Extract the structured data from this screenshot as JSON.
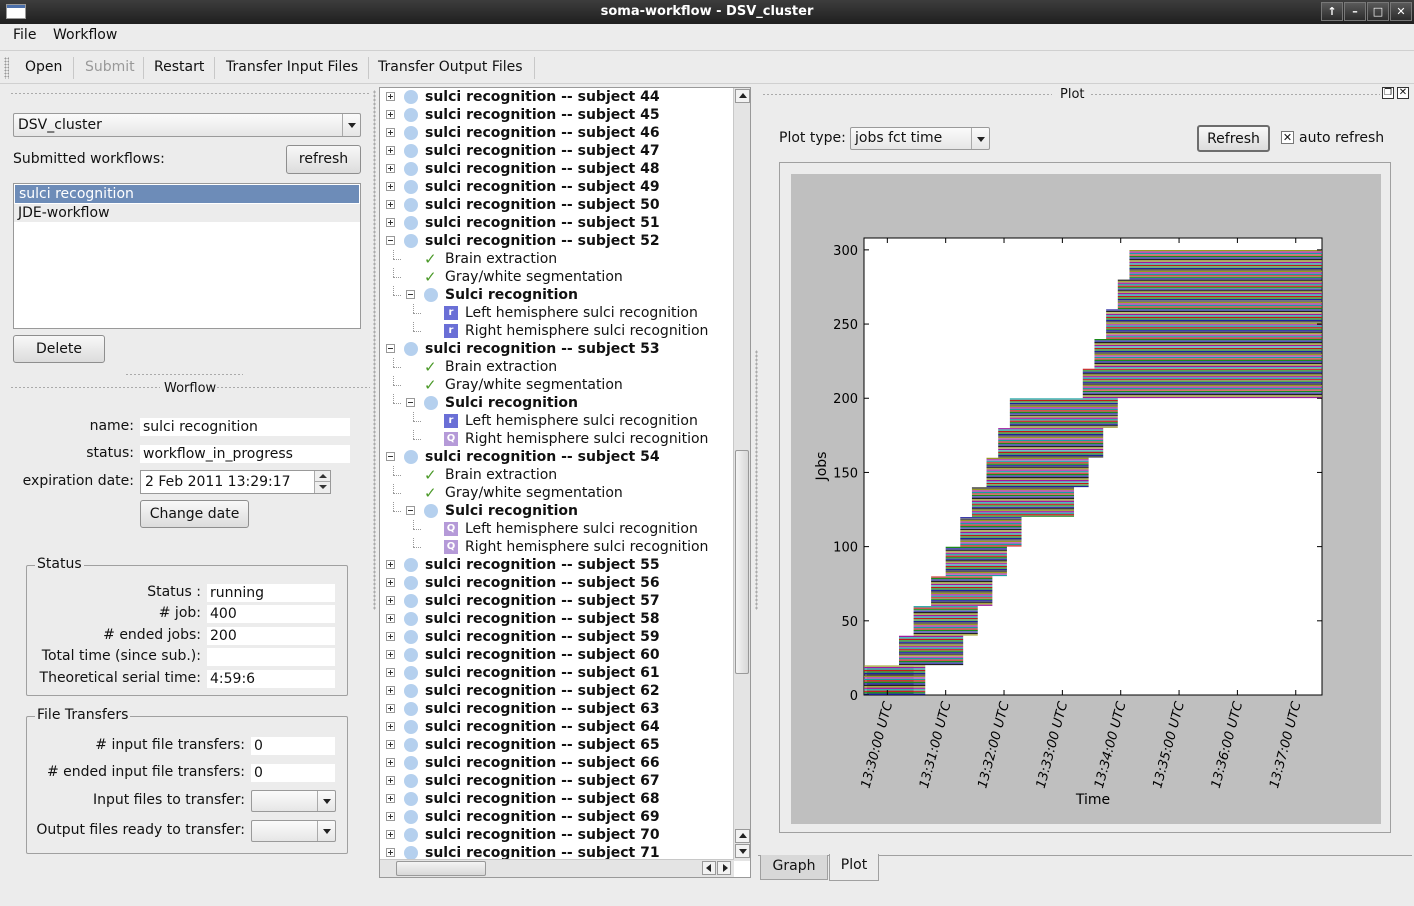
{
  "window": {
    "title": "soma-workflow - DSV_cluster"
  },
  "menu": {
    "file": "File",
    "workflow": "Workflow"
  },
  "toolbar": {
    "open": "Open",
    "submit": "Submit",
    "restart": "Restart",
    "transfer_input": "Transfer Input Files",
    "transfer_output": "Transfer Output Files"
  },
  "left": {
    "resource": "DSV_cluster",
    "submitted_label": "Submitted workflows:",
    "refresh": "refresh",
    "workflows": [
      "sulci recognition",
      "JDE-workflow"
    ],
    "delete": "Delete",
    "section_title": "Worflow",
    "name_label": "name:",
    "name_value": "sulci recognition",
    "status_label": "status:",
    "status_value": "workflow_in_progress",
    "expiration_label": "expiration date:",
    "expiration_value": "2 Feb 2011 13:29:17",
    "change_date": "Change date"
  },
  "status_box": {
    "title": "Status",
    "status_label": "Status :",
    "status_value": "running",
    "job_label": "# job:",
    "job_value": "400",
    "ended_label": "# ended jobs:",
    "ended_value": "200",
    "total_label": "Total time (since sub.):",
    "total_value": "",
    "serial_label": "Theoretical serial time:",
    "serial_value": "4:59:6"
  },
  "transfer_box": {
    "title": "File Transfers",
    "input_label": "# input file transfers:",
    "input_value": "0",
    "ended_input_label": "# ended input file transfers:",
    "ended_input_value": "0",
    "input_files_label": "Input files to transfer:",
    "output_files_label": "Output files ready to transfer:"
  },
  "tree": [
    {
      "level": 0,
      "exp": "plus",
      "icon": "dot",
      "text": "sulci recognition -- subject 44",
      "bold": true
    },
    {
      "level": 0,
      "exp": "plus",
      "icon": "dot",
      "text": "sulci recognition -- subject 45",
      "bold": true
    },
    {
      "level": 0,
      "exp": "plus",
      "icon": "dot",
      "text": "sulci recognition -- subject 46",
      "bold": true
    },
    {
      "level": 0,
      "exp": "plus",
      "icon": "dot",
      "text": "sulci recognition -- subject 47",
      "bold": true
    },
    {
      "level": 0,
      "exp": "plus",
      "icon": "dot",
      "text": "sulci recognition -- subject 48",
      "bold": true
    },
    {
      "level": 0,
      "exp": "plus",
      "icon": "dot",
      "text": "sulci recognition -- subject 49",
      "bold": true
    },
    {
      "level": 0,
      "exp": "plus",
      "icon": "dot",
      "text": "sulci recognition -- subject 50",
      "bold": true
    },
    {
      "level": 0,
      "exp": "plus",
      "icon": "dot",
      "text": "sulci recognition -- subject 51",
      "bold": true
    },
    {
      "level": 0,
      "exp": "minus",
      "icon": "dot",
      "text": "sulci recognition -- subject 52",
      "bold": true
    },
    {
      "level": 1,
      "exp": "",
      "icon": "check",
      "text": "Brain extraction",
      "bold": false
    },
    {
      "level": 1,
      "exp": "",
      "icon": "check",
      "text": "Gray/white segmentation",
      "bold": false
    },
    {
      "level": 1,
      "exp": "minus",
      "icon": "dot",
      "text": "Sulci recognition",
      "bold": true
    },
    {
      "level": 2,
      "exp": "",
      "icon": "r",
      "text": "Left hemisphere sulci recognition",
      "bold": false
    },
    {
      "level": 2,
      "exp": "",
      "icon": "r",
      "text": "Right hemisphere sulci recognition",
      "bold": false
    },
    {
      "level": 0,
      "exp": "minus",
      "icon": "dot",
      "text": "sulci recognition -- subject 53",
      "bold": true
    },
    {
      "level": 1,
      "exp": "",
      "icon": "check",
      "text": "Brain extraction",
      "bold": false
    },
    {
      "level": 1,
      "exp": "",
      "icon": "check",
      "text": "Gray/white segmentation",
      "bold": false
    },
    {
      "level": 1,
      "exp": "minus",
      "icon": "dot",
      "text": "Sulci recognition",
      "bold": true
    },
    {
      "level": 2,
      "exp": "",
      "icon": "r",
      "text": "Left hemisphere sulci recognition",
      "bold": false
    },
    {
      "level": 2,
      "exp": "",
      "icon": "q",
      "text": "Right hemisphere sulci recognition",
      "bold": false
    },
    {
      "level": 0,
      "exp": "minus",
      "icon": "dot",
      "text": "sulci recognition -- subject 54",
      "bold": true
    },
    {
      "level": 1,
      "exp": "",
      "icon": "check",
      "text": "Brain extraction",
      "bold": false
    },
    {
      "level": 1,
      "exp": "",
      "icon": "check",
      "text": "Gray/white segmentation",
      "bold": false
    },
    {
      "level": 1,
      "exp": "minus",
      "icon": "dot",
      "text": "Sulci recognition",
      "bold": true
    },
    {
      "level": 2,
      "exp": "",
      "icon": "q",
      "text": "Left hemisphere sulci recognition",
      "bold": false
    },
    {
      "level": 2,
      "exp": "",
      "icon": "q",
      "text": "Right hemisphere sulci recognition",
      "bold": false
    },
    {
      "level": 0,
      "exp": "plus",
      "icon": "dot",
      "text": "sulci recognition -- subject 55",
      "bold": true
    },
    {
      "level": 0,
      "exp": "plus",
      "icon": "dot",
      "text": "sulci recognition -- subject 56",
      "bold": true
    },
    {
      "level": 0,
      "exp": "plus",
      "icon": "dot",
      "text": "sulci recognition -- subject 57",
      "bold": true
    },
    {
      "level": 0,
      "exp": "plus",
      "icon": "dot",
      "text": "sulci recognition -- subject 58",
      "bold": true
    },
    {
      "level": 0,
      "exp": "plus",
      "icon": "dot",
      "text": "sulci recognition -- subject 59",
      "bold": true
    },
    {
      "level": 0,
      "exp": "plus",
      "icon": "dot",
      "text": "sulci recognition -- subject 60",
      "bold": true
    },
    {
      "level": 0,
      "exp": "plus",
      "icon": "dot",
      "text": "sulci recognition -- subject 61",
      "bold": true
    },
    {
      "level": 0,
      "exp": "plus",
      "icon": "dot",
      "text": "sulci recognition -- subject 62",
      "bold": true
    },
    {
      "level": 0,
      "exp": "plus",
      "icon": "dot",
      "text": "sulci recognition -- subject 63",
      "bold": true
    },
    {
      "level": 0,
      "exp": "plus",
      "icon": "dot",
      "text": "sulci recognition -- subject 64",
      "bold": true
    },
    {
      "level": 0,
      "exp": "plus",
      "icon": "dot",
      "text": "sulci recognition -- subject 65",
      "bold": true
    },
    {
      "level": 0,
      "exp": "plus",
      "icon": "dot",
      "text": "sulci recognition -- subject 66",
      "bold": true
    },
    {
      "level": 0,
      "exp": "plus",
      "icon": "dot",
      "text": "sulci recognition -- subject 67",
      "bold": true
    },
    {
      "level": 0,
      "exp": "plus",
      "icon": "dot",
      "text": "sulci recognition -- subject 68",
      "bold": true
    },
    {
      "level": 0,
      "exp": "plus",
      "icon": "dot",
      "text": "sulci recognition -- subject 69",
      "bold": true
    },
    {
      "level": 0,
      "exp": "plus",
      "icon": "dot",
      "text": "sulci recognition -- subject 70",
      "bold": true
    },
    {
      "level": 0,
      "exp": "plus",
      "icon": "dot",
      "text": "sulci recognition -- subject 71",
      "bold": true
    }
  ],
  "plot_panel": {
    "title": "Plot",
    "plot_type_label": "Plot type:",
    "plot_type_value": "jobs fct time",
    "refresh": "Refresh",
    "auto_refresh": "auto refresh",
    "auto_refresh_checked": true,
    "tabs": [
      "Graph",
      "Plot"
    ],
    "active_tab": "Plot"
  },
  "chart_data": {
    "type": "bar",
    "xlabel": "Time",
    "ylabel": "Jobs",
    "ylim": [
      0,
      308
    ],
    "yticks": [
      0,
      50,
      100,
      150,
      200,
      250,
      300
    ],
    "xticks": [
      "13:30:00 UTC",
      "13:31:00 UTC",
      "13:32:00 UTC",
      "13:33:00 UTC",
      "13:34:00 UTC",
      "13:35:00 UTC",
      "13:36:00 UTC",
      "13:37:00 UTC"
    ],
    "xlim_minutes_from_1330": [
      -0.4,
      7.45
    ],
    "job_blocks": [
      {
        "jobs": [
          0,
          20
        ],
        "start": -0.4,
        "end": 0.45
      },
      {
        "jobs": [
          0,
          20
        ],
        "start": -0.35,
        "end": 0.65
      },
      {
        "jobs": [
          20,
          40
        ],
        "start": 0.2,
        "end": 1.3
      },
      {
        "jobs": [
          40,
          60
        ],
        "start": 0.45,
        "end": 1.55
      },
      {
        "jobs": [
          60,
          80
        ],
        "start": 0.75,
        "end": 1.8
      },
      {
        "jobs": [
          80,
          100
        ],
        "start": 1.0,
        "end": 2.05
      },
      {
        "jobs": [
          100,
          120
        ],
        "start": 1.25,
        "end": 2.3
      },
      {
        "jobs": [
          120,
          140
        ],
        "start": 1.45,
        "end": 3.2
      },
      {
        "jobs": [
          140,
          160
        ],
        "start": 1.7,
        "end": 3.45
      },
      {
        "jobs": [
          160,
          180
        ],
        "start": 1.9,
        "end": 3.7
      },
      {
        "jobs": [
          180,
          200
        ],
        "start": 2.1,
        "end": 3.95
      },
      {
        "jobs": [
          200,
          220
        ],
        "start": 3.35,
        "end": 7.45
      },
      {
        "jobs": [
          220,
          240
        ],
        "start": 3.55,
        "end": 7.45
      },
      {
        "jobs": [
          240,
          260
        ],
        "start": 3.75,
        "end": 7.45
      },
      {
        "jobs": [
          260,
          280
        ],
        "start": 3.95,
        "end": 7.45
      },
      {
        "jobs": [
          280,
          300
        ],
        "start": 4.15,
        "end": 7.45
      }
    ],
    "line_colors": [
      "#1f1f9f",
      "#1a8a1a",
      "#c01818",
      "#17a0a0",
      "#a018a0",
      "#999922",
      "#222222"
    ]
  }
}
